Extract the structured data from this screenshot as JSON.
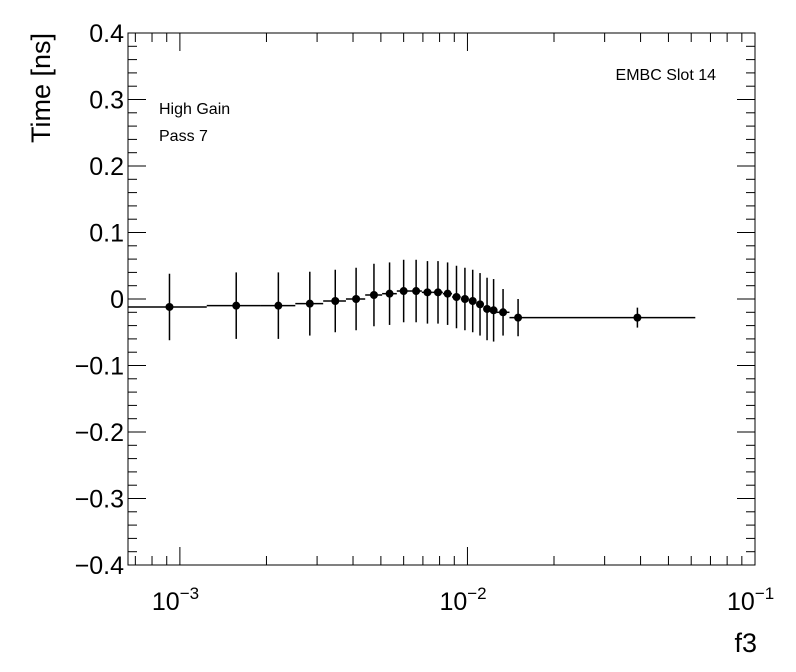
{
  "chart_data": {
    "type": "scatter",
    "xlabel": "f3",
    "ylabel": "Time [ns]",
    "x_scale": "log",
    "xlim": [
      0.00066,
      0.1
    ],
    "ylim": [
      -0.4,
      0.4
    ],
    "x_tick_labels": [
      {
        "base": "10",
        "exp": "−3",
        "value": 0.001
      },
      {
        "base": "10",
        "exp": "−2",
        "value": 0.01
      },
      {
        "base": "10",
        "exp": "−1",
        "value": 0.1
      }
    ],
    "y_ticks": [
      -0.4,
      -0.3,
      -0.2,
      -0.1,
      0,
      0.1,
      0.2,
      0.3,
      0.4
    ],
    "y_tick_labels": [
      "−0.4",
      "−0.3",
      "−0.2",
      "−0.1",
      "0",
      "0.1",
      "0.2",
      "0.3",
      "0.4"
    ],
    "annotations": {
      "top_right": "EMBC Slot 14",
      "line1": "High Gain",
      "line2": "Pass 7"
    },
    "series": [
      {
        "marker": "circle",
        "color": "#000000",
        "points": [
          {
            "x": 0.00092,
            "y": -0.012,
            "err": 0.05
          },
          {
            "x": 0.00157,
            "y": -0.01,
            "err": 0.05
          },
          {
            "x": 0.0022,
            "y": -0.01,
            "err": 0.05
          },
          {
            "x": 0.00283,
            "y": -0.007,
            "err": 0.048
          },
          {
            "x": 0.00347,
            "y": -0.003,
            "err": 0.047
          },
          {
            "x": 0.0041,
            "y": 0.0,
            "err": 0.047
          },
          {
            "x": 0.00473,
            "y": 0.006,
            "err": 0.047
          },
          {
            "x": 0.00536,
            "y": 0.008,
            "err": 0.047
          },
          {
            "x": 0.006,
            "y": 0.012,
            "err": 0.047
          },
          {
            "x": 0.00663,
            "y": 0.012,
            "err": 0.047
          },
          {
            "x": 0.00726,
            "y": 0.01,
            "err": 0.047
          },
          {
            "x": 0.0079,
            "y": 0.01,
            "err": 0.047
          },
          {
            "x": 0.00853,
            "y": 0.008,
            "err": 0.047
          },
          {
            "x": 0.00916,
            "y": 0.003,
            "err": 0.047
          },
          {
            "x": 0.0098,
            "y": 0.0,
            "err": 0.047
          },
          {
            "x": 0.01043,
            "y": -0.003,
            "err": 0.047
          },
          {
            "x": 0.01106,
            "y": -0.008,
            "err": 0.047
          },
          {
            "x": 0.0117,
            "y": -0.015,
            "err": 0.047
          },
          {
            "x": 0.01233,
            "y": -0.017,
            "err": 0.047
          },
          {
            "x": 0.0133,
            "y": -0.02,
            "err": 0.035
          },
          {
            "x": 0.015,
            "y": -0.028,
            "err": 0.028
          },
          {
            "x": 0.039,
            "y": -0.028,
            "err": 0.015
          }
        ]
      }
    ],
    "step_line": [
      {
        "x0": 0.00066,
        "x1": 0.00124,
        "y": -0.012
      },
      {
        "x0": 0.00124,
        "x1": 0.0019,
        "y": -0.01
      },
      {
        "x0": 0.0019,
        "x1": 0.00252,
        "y": -0.01
      },
      {
        "x0": 0.00252,
        "x1": 0.00315,
        "y": -0.007
      },
      {
        "x0": 0.00315,
        "x1": 0.00378,
        "y": -0.003
      },
      {
        "x0": 0.00378,
        "x1": 0.00441,
        "y": 0.0
      },
      {
        "x0": 0.00441,
        "x1": 0.00505,
        "y": 0.006
      },
      {
        "x0": 0.00505,
        "x1": 0.00568,
        "y": 0.008
      },
      {
        "x0": 0.00568,
        "x1": 0.00631,
        "y": 0.012
      },
      {
        "x0": 0.00631,
        "x1": 0.00694,
        "y": 0.012
      },
      {
        "x0": 0.00694,
        "x1": 0.00758,
        "y": 0.01
      },
      {
        "x0": 0.00758,
        "x1": 0.00821,
        "y": 0.01
      },
      {
        "x0": 0.00821,
        "x1": 0.00884,
        "y": 0.008
      },
      {
        "x0": 0.00884,
        "x1": 0.00948,
        "y": 0.003
      },
      {
        "x0": 0.00948,
        "x1": 0.01011,
        "y": 0.0
      },
      {
        "x0": 0.01011,
        "x1": 0.01074,
        "y": -0.003
      },
      {
        "x0": 0.01074,
        "x1": 0.01138,
        "y": -0.008
      },
      {
        "x0": 0.01138,
        "x1": 0.01201,
        "y": -0.015
      },
      {
        "x0": 0.01201,
        "x1": 0.01264,
        "y": -0.017
      },
      {
        "x0": 0.01264,
        "x1": 0.014,
        "y": -0.02
      },
      {
        "x0": 0.014,
        "x1": 0.062,
        "y": -0.028
      }
    ]
  }
}
